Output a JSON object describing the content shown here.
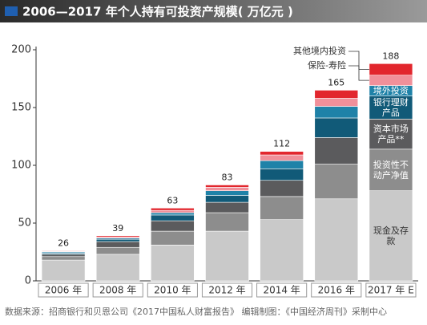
{
  "chart_data": {
    "type": "stacked-bar",
    "title": "2006—2017 年个人持有可投资产规模( 万亿元 )",
    "categories": [
      "2006 年",
      "2008 年",
      "2010 年",
      "2012 年",
      "2014 年",
      "2016 年",
      "2017 年 E"
    ],
    "totals": [
      26,
      39,
      63,
      83,
      112,
      165,
      188
    ],
    "series": [
      {
        "name": "现金及存款",
        "color": "#c9c9c9",
        "values": [
          18,
          23,
          31,
          43,
          53,
          71,
          78
        ]
      },
      {
        "name": "投资性不动产净值",
        "color": "#8d8d8d",
        "values": [
          3,
          6,
          12,
          16,
          20,
          30,
          36
        ]
      },
      {
        "name": "资本市场产品**",
        "color": "#5b5b5d",
        "values": [
          2,
          5,
          9,
          9,
          14,
          23,
          26
        ]
      },
      {
        "name": "银行理财产品",
        "color": "#115a78",
        "values": [
          1,
          2,
          5,
          6,
          10,
          17,
          20
        ]
      },
      {
        "name": "境外投资",
        "color": "#1f82a8",
        "values": [
          1,
          1,
          2,
          4,
          7,
          10,
          9
        ]
      },
      {
        "name": "保险-寿险",
        "color": "#f0909a",
        "values": [
          0.5,
          1,
          2,
          3,
          5,
          7,
          9
        ]
      },
      {
        "name": "其他境内投资",
        "color": "#e2262d",
        "values": [
          0.5,
          1,
          2,
          2,
          3,
          7,
          10
        ]
      }
    ],
    "ylim": [
      0,
      200
    ],
    "yticks": [
      0,
      50,
      100,
      150,
      200
    ],
    "grid": false,
    "source": "数据来源：招商银行和贝恩公司《2017中国私人财富报告》   编辑制图：《中国经济周刊》采制中心"
  }
}
